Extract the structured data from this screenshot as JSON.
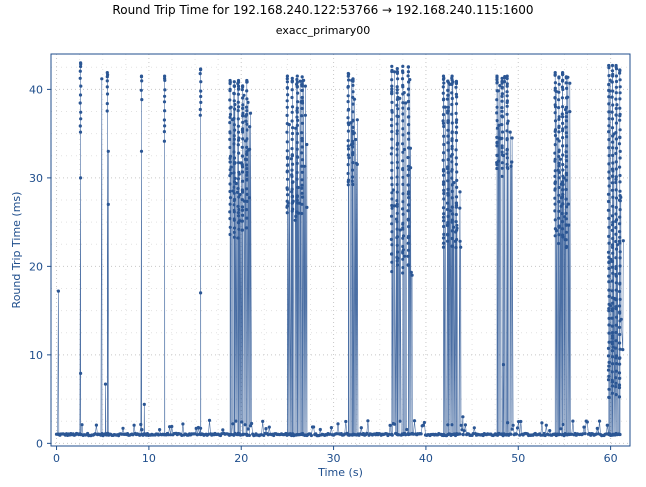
{
  "title": "Round Trip Time for 192.168.240.122:53766 → 192.168.240.115:1600",
  "subtitle": "exacc_primary00",
  "colors": {
    "series": "#2b5694",
    "axis": "#1f4e8c",
    "grid": "#c8c8c8"
  },
  "chart_data": {
    "type": "scatter",
    "title": "Round Trip Time for 192.168.240.122:53766 → 192.168.240.115:1600",
    "subtitle": "exacc_primary00",
    "xlabel": "Time (s)",
    "ylabel": "Round Trip Time (ms)",
    "xlim": [
      -0.6,
      62.1
    ],
    "ylim": [
      -0.3,
      44.0
    ],
    "xticks": [
      0,
      10,
      20,
      30,
      40,
      50,
      60
    ],
    "yticks": [
      0,
      10,
      20,
      30,
      40
    ],
    "grid": true,
    "connected": true,
    "baseline_ms": 1.0,
    "isolated_points": [
      [
        0.2,
        17.2
      ],
      [
        2.6,
        30.0
      ],
      [
        2.6,
        7.9
      ],
      [
        4.9,
        41.2
      ],
      [
        5.3,
        6.7
      ],
      [
        5.6,
        33.0
      ],
      [
        5.6,
        27.0
      ],
      [
        9.2,
        33.0
      ],
      [
        9.5,
        4.4
      ],
      [
        15.6,
        17.0
      ],
      [
        48.4,
        8.9
      ],
      [
        44.0,
        3.0
      ]
    ],
    "bursts": [
      {
        "t": 2.6,
        "ymin": 34.0,
        "ymax": 43.0,
        "lines": 1
      },
      {
        "t": 5.5,
        "ymin": 37.0,
        "ymax": 41.9,
        "lines": 1
      },
      {
        "t": 9.2,
        "ymin": 38.0,
        "ymax": 41.5,
        "lines": 1
      },
      {
        "t": 11.7,
        "ymin": 34.0,
        "ymax": 41.5,
        "lines": 1
      },
      {
        "t": 15.6,
        "ymin": 37.0,
        "ymax": 42.3,
        "lines": 1
      },
      {
        "t": 18.8,
        "ymin": 23.0,
        "ymax": 41.0,
        "lines": 5,
        "width": 1.8
      },
      {
        "t": 25.0,
        "ymin": 25.0,
        "ymax": 41.5,
        "lines": 4,
        "width": 1.6
      },
      {
        "t": 31.6,
        "ymin": 29.0,
        "ymax": 41.8,
        "lines": 2,
        "width": 0.5
      },
      {
        "t": 36.3,
        "ymin": 19.0,
        "ymax": 42.6,
        "lines": 4,
        "width": 1.8
      },
      {
        "t": 41.9,
        "ymin": 22.0,
        "ymax": 41.5,
        "lines": 4,
        "width": 1.4
      },
      {
        "t": 47.7,
        "ymin": 30.0,
        "ymax": 41.5,
        "lines": 3,
        "width": 1.1
      },
      {
        "t": 54.0,
        "ymin": 22.0,
        "ymax": 41.9,
        "lines": 4,
        "width": 1.2
      },
      {
        "t": 59.8,
        "ymin": 5.0,
        "ymax": 42.7,
        "lines": 4,
        "width": 1.2
      }
    ]
  }
}
